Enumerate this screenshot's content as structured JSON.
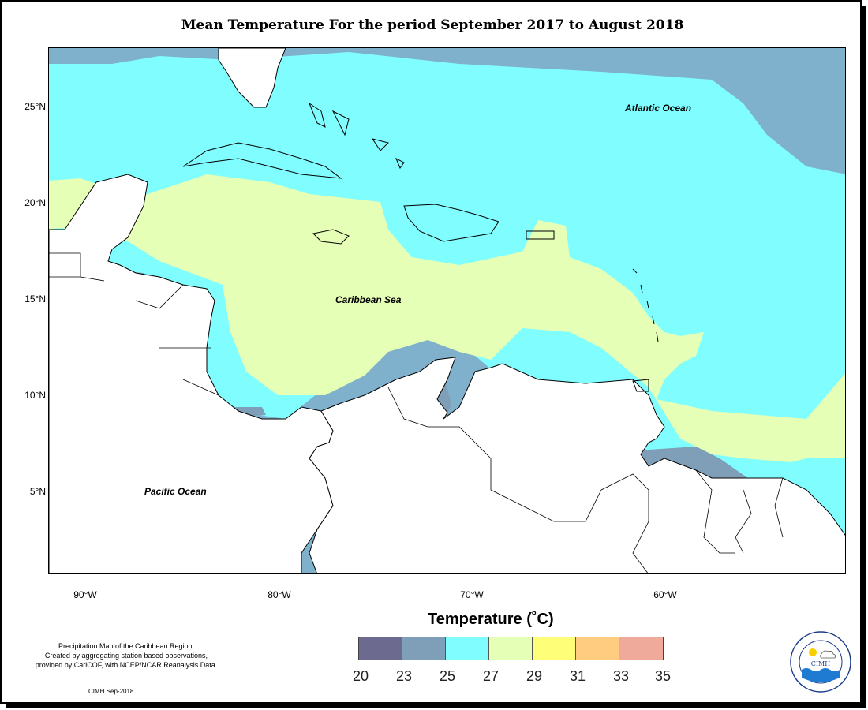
{
  "title": "Mean Temperature For the period September 2017 to August 2018",
  "latitude_labels": [
    "25°N",
    "20°N",
    "15°N",
    "10°N",
    "5°N"
  ],
  "longitude_labels": [
    "90°W",
    "80°W",
    "70°W",
    "60°W"
  ],
  "ocean_labels": {
    "atlantic": "Atlantic Ocean",
    "caribbean": "Caribbean Sea",
    "pacific": "Pacific Ocean"
  },
  "legend": {
    "title": "Temperature (˚C)",
    "colors": [
      "#6c6a8e",
      "#7f9fb8",
      "#80feff",
      "#e6ffb6",
      "#fefe79",
      "#ffcc80",
      "#f0aa9b"
    ],
    "ticks": [
      "20",
      "23",
      "25",
      "27",
      "29",
      "31",
      "33",
      "35"
    ]
  },
  "credit": {
    "line1": "Precipitation Map of the Caribbean Region.",
    "line2": "Created by aggregating station based observations,",
    "line3": "provided by CariCOF, with NCEP/NCAR Reanalysis Data.",
    "stamp": "CIMH Sep-2018"
  },
  "logo": {
    "name": "CIMH",
    "ring_text": "Caribbean Institute for Meteorology and Hydrology"
  },
  "map_colors": {
    "band_23_25": "#7f9fb8",
    "band_25_27": "#80feff",
    "band_27_29": "#e6ffb6",
    "land": "#ffffff",
    "border": "#000000"
  }
}
